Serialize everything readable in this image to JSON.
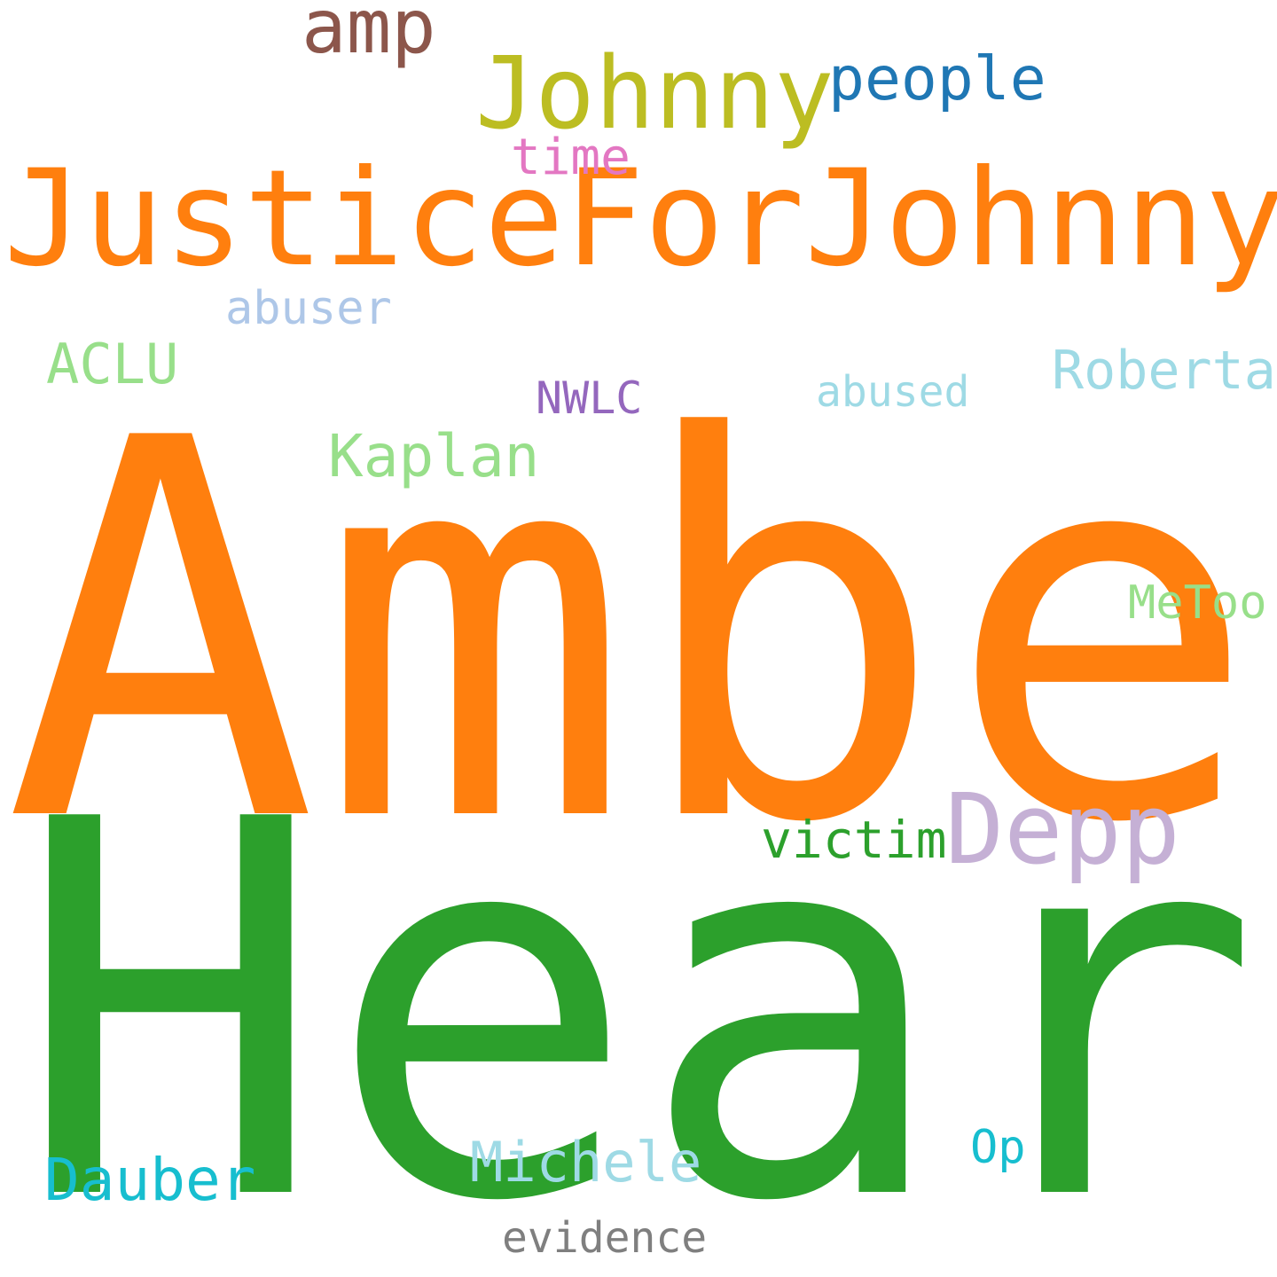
{
  "words": {
    "amber": {
      "text": "Amber",
      "color": "#ff7f0e"
    },
    "heard": {
      "text": "Heard",
      "color": "#2ca02c"
    },
    "jfjd": {
      "text": "JusticeForJohnnyDepp",
      "color": "#ff7f0e"
    },
    "johnny": {
      "text": "Johnny",
      "color": "#bcbd22"
    },
    "amp": {
      "text": "amp",
      "color": "#8c564b"
    },
    "people": {
      "text": "people",
      "color": "#1f77b4"
    },
    "time": {
      "text": "time",
      "color": "#e377c2"
    },
    "abuser": {
      "text": "abuser",
      "color": "#aec7e8"
    },
    "aclu": {
      "text": "ACLU",
      "color": "#98df8a"
    },
    "nwlc": {
      "text": "NWLC",
      "color": "#9467bd"
    },
    "abused": {
      "text": "abused",
      "color": "#9edae5"
    },
    "roberta": {
      "text": "Roberta",
      "color": "#9edae5"
    },
    "kaplan": {
      "text": "Kaplan",
      "color": "#98df8a"
    },
    "metoo": {
      "text": "MeToo",
      "color": "#98df8a"
    },
    "depp": {
      "text": "Depp",
      "color": "#c5b0d5"
    },
    "victim": {
      "text": "victim",
      "color": "#2ca02c"
    },
    "dauber": {
      "text": "Dauber",
      "color": "#17becf"
    },
    "michele": {
      "text": "Michele",
      "color": "#9edae5"
    },
    "op": {
      "text": "Op",
      "color": "#17becf"
    },
    "evidence": {
      "text": "evidence",
      "color": "#7f7f7f"
    }
  }
}
